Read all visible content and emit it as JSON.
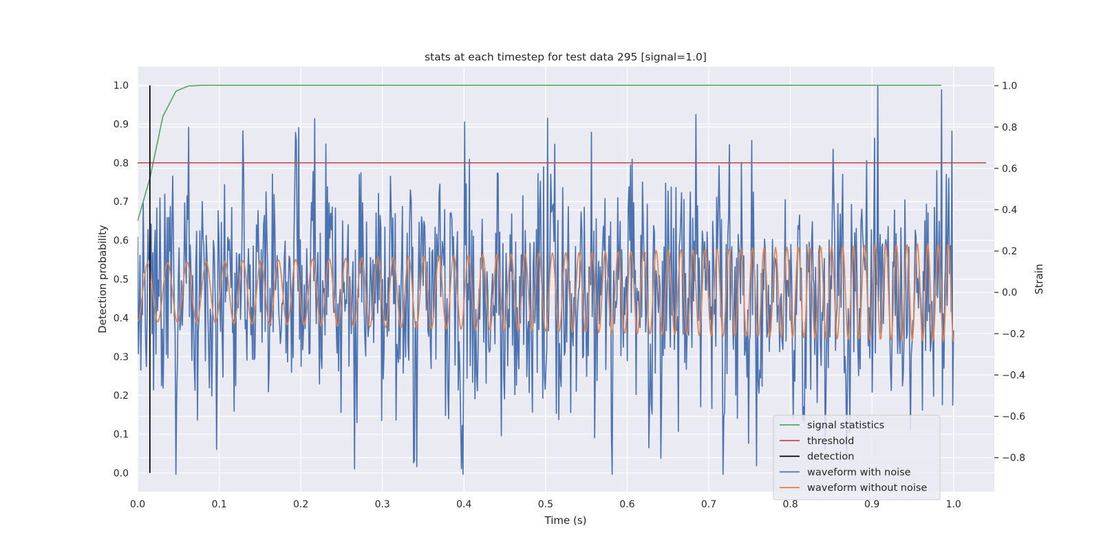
{
  "chart_data": {
    "type": "line",
    "title": "stats at each timestep for test data 295 [signal=1.0]",
    "xlabel": "Time (s)",
    "ylabel": "Detection probability",
    "y2label": "Strain",
    "xlim": [
      0.0,
      1.05
    ],
    "ylim": [
      -0.048,
      1.048
    ],
    "y2lim": [
      -0.964,
      1.092
    ],
    "x_ticks": [
      "0.0",
      "0.1",
      "0.2",
      "0.3",
      "0.4",
      "0.5",
      "0.6",
      "0.7",
      "0.8",
      "0.9",
      "1.0"
    ],
    "y_ticks": [
      "0.0",
      "0.1",
      "0.2",
      "0.3",
      "0.4",
      "0.5",
      "0.6",
      "0.7",
      "0.8",
      "0.9",
      "1.0"
    ],
    "y2_ticks": [
      "−0.8",
      "−0.6",
      "−0.4",
      "−0.2",
      "0.0",
      "0.2",
      "0.4",
      "0.6",
      "0.8",
      "1.0"
    ],
    "grid": true,
    "legend_position": "lower-right",
    "colors": {
      "signal_statistics": "#55a868",
      "threshold": "#c44e52",
      "detection": "#000000",
      "waveform_with_noise": "#4c72b0",
      "waveform_without_noise": "#dd8452",
      "plot_background": "#eaeaf2",
      "grid": "#ffffff"
    },
    "series": [
      {
        "name": "signal statistics",
        "axis": "left",
        "x": [
          0.0,
          0.015,
          0.031,
          0.047,
          0.062,
          0.078,
          0.1,
          0.2,
          0.3,
          0.4,
          0.5,
          0.6,
          0.7,
          0.8,
          0.9,
          0.985
        ],
        "y": [
          0.65,
          0.76,
          0.92,
          0.985,
          0.998,
          1.0,
          1.0,
          1.0,
          1.0,
          1.0,
          1.0,
          1.0,
          1.0,
          1.0,
          1.0,
          1.0
        ]
      },
      {
        "name": "threshold",
        "axis": "left",
        "x": [
          0.0,
          1.04
        ],
        "y": [
          0.8,
          0.8
        ]
      },
      {
        "name": "detection",
        "axis": "left",
        "x": [
          0.015,
          0.015
        ],
        "y": [
          0.0,
          1.0
        ]
      },
      {
        "name": "waveform with noise",
        "axis": "right",
        "x_start": 0.0,
        "x_end": 1.0,
        "points": 1024,
        "y_range": [
          -0.88,
          1.0
        ],
        "y_std": 0.29,
        "peaks": [
          {
            "x": 0.047,
            "y": -0.88
          },
          {
            "x": 0.097,
            "y": -0.76
          },
          {
            "x": 0.217,
            "y": 0.84
          },
          {
            "x": 0.399,
            "y": -0.88
          },
          {
            "x": 0.684,
            "y": 0.86
          },
          {
            "x": 0.907,
            "y": 1.0
          },
          {
            "x": 0.985,
            "y": 0.98
          },
          {
            "x": 0.998,
            "y": 0.78
          }
        ]
      },
      {
        "name": "waveform without noise",
        "axis": "right",
        "x_start": 0.0,
        "x_end": 1.0,
        "points": 1024,
        "amplitude_start": 0.14,
        "amplitude_end": 0.24,
        "cycles_start_per_s": 40,
        "cycles_end_per_s": 80
      }
    ]
  }
}
